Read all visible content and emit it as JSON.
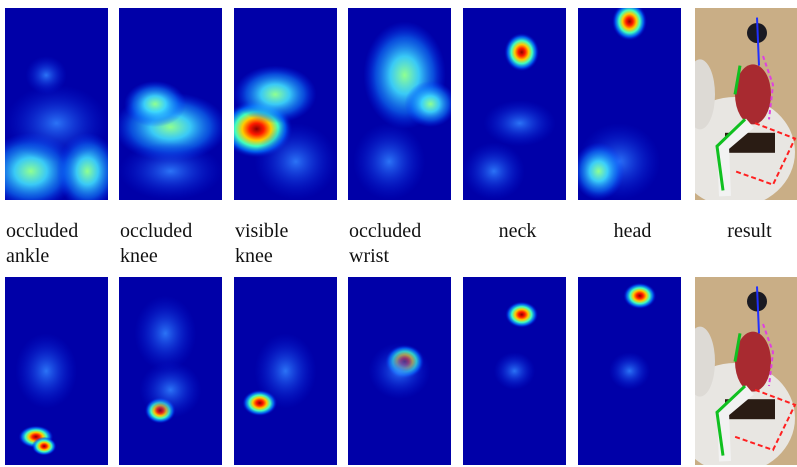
{
  "figure": {
    "captions": [
      {
        "lines": [
          "occluded",
          "ankle"
        ]
      },
      {
        "lines": [
          "occluded",
          "knee"
        ]
      },
      {
        "lines": [
          "visible",
          "knee"
        ]
      },
      {
        "lines": [
          "occluded",
          "wrist"
        ]
      },
      {
        "lines": [
          "neck"
        ]
      },
      {
        "lines": [
          "head"
        ]
      },
      {
        "lines": [
          "result"
        ]
      }
    ]
  }
}
